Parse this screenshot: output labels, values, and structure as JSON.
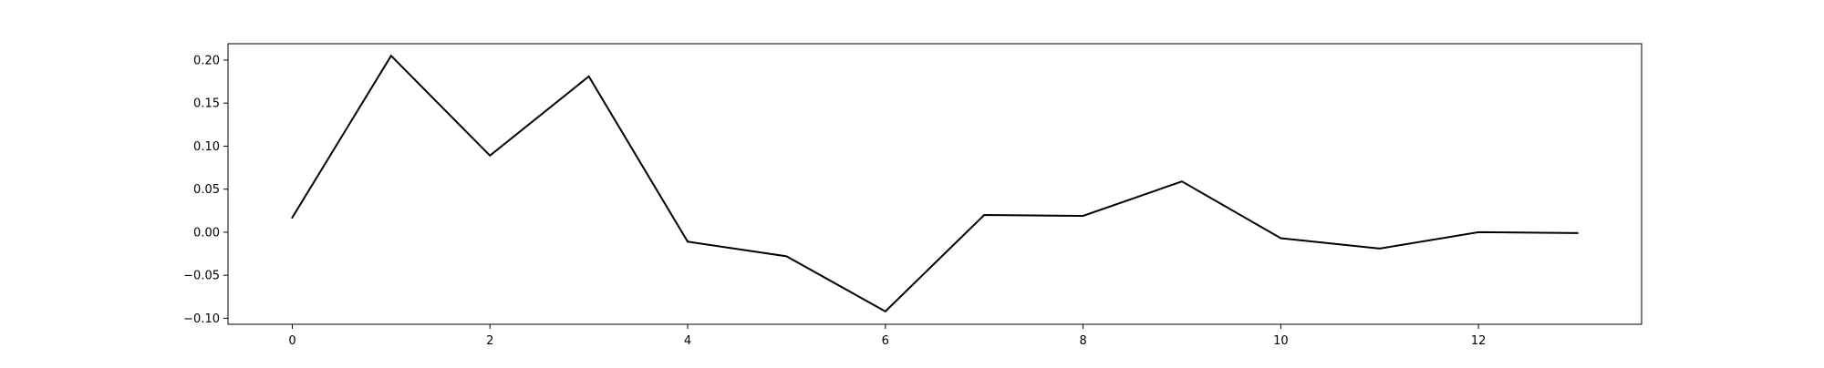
{
  "chart_data": {
    "type": "line",
    "title": "",
    "xlabel": "",
    "ylabel": "",
    "x": [
      0,
      1,
      2,
      3,
      4,
      5,
      6,
      7,
      8,
      9,
      10,
      11,
      12,
      13
    ],
    "series": [
      {
        "values": [
          0.017,
          0.205,
          0.089,
          0.181,
          -0.011,
          -0.028,
          -0.092,
          0.02,
          0.019,
          0.059,
          -0.007,
          -0.019,
          0.0,
          -0.001
        ],
        "color": "#000000"
      }
    ],
    "xlim": [
      -0.65,
      13.65
    ],
    "ylim": [
      -0.107,
      0.219
    ],
    "xticks": [
      0,
      2,
      4,
      6,
      8,
      10,
      12
    ],
    "xtick_labels": [
      "0",
      "2",
      "4",
      "6",
      "8",
      "10",
      "12"
    ],
    "yticks": [
      0.2,
      0.15,
      0.1,
      0.05,
      0.0,
      -0.05,
      -0.1
    ],
    "ytick_labels": [
      "0.20",
      "0.15",
      "0.10",
      "0.05",
      "0.00",
      "−0.05",
      "−0.10"
    ],
    "grid": false,
    "legend": "none"
  }
}
